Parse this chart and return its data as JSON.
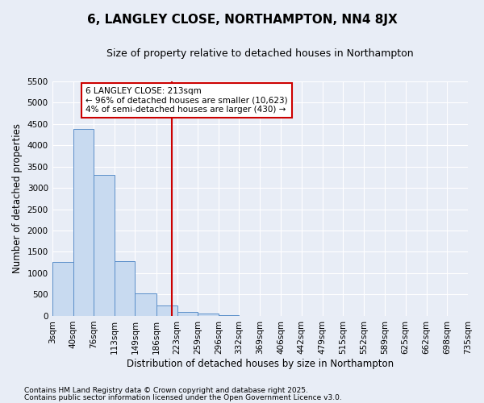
{
  "title": "6, LANGLEY CLOSE, NORTHAMPTON, NN4 8JX",
  "subtitle": "Size of property relative to detached houses in Northampton",
  "xlabel": "Distribution of detached houses by size in Northampton",
  "ylabel": "Number of detached properties",
  "footnote1": "Contains HM Land Registry data © Crown copyright and database right 2025.",
  "footnote2": "Contains public sector information licensed under the Open Government Licence v3.0.",
  "annotation_lines": [
    "6 LANGLEY CLOSE: 213sqm",
    "← 96% of detached houses are smaller (10,623)",
    "4% of semi-detached houses are larger (430) →"
  ],
  "bin_edges": [
    3,
    40,
    76,
    113,
    149,
    186,
    223,
    259,
    296,
    332,
    369,
    406,
    442,
    479,
    515,
    552,
    589,
    625,
    662,
    698,
    735
  ],
  "bin_labels": [
    "3sqm",
    "40sqm",
    "76sqm",
    "113sqm",
    "149sqm",
    "186sqm",
    "223sqm",
    "259sqm",
    "296sqm",
    "332sqm",
    "369sqm",
    "406sqm",
    "442sqm",
    "479sqm",
    "515sqm",
    "552sqm",
    "589sqm",
    "625sqm",
    "662sqm",
    "698sqm",
    "735sqm"
  ],
  "counts": [
    1270,
    4380,
    3300,
    1280,
    520,
    240,
    100,
    50,
    10,
    0,
    0,
    0,
    0,
    0,
    0,
    0,
    0,
    0,
    0,
    0
  ],
  "bar_color": "#c8daf0",
  "bar_edge_color": "#5b8fc9",
  "vline_x": 213,
  "vline_color": "#cc0000",
  "ylim": [
    0,
    5500
  ],
  "yticks": [
    0,
    500,
    1000,
    1500,
    2000,
    2500,
    3000,
    3500,
    4000,
    4500,
    5000,
    5500
  ],
  "bg_color": "#e8edf6",
  "grid_color": "#ffffff",
  "title_fontsize": 11,
  "subtitle_fontsize": 9,
  "axis_label_fontsize": 8.5,
  "tick_fontsize": 7.5,
  "annotation_fontsize": 7.5,
  "footnote_fontsize": 6.5
}
